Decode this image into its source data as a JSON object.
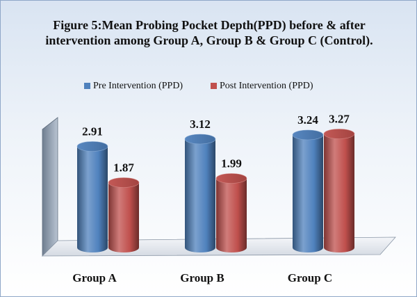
{
  "chart_data": {
    "type": "bar3d",
    "title": "Figure 5:Mean Probing Pocket Depth(PPD)  before & after intervention among Group A, Group B & Group C (Control).",
    "categories": [
      "Group A",
      "Group B",
      "Group C"
    ],
    "series": [
      {
        "name": "Pre Intervention (PPD)",
        "color": "#4f81bd",
        "values": [
          2.91,
          3.12,
          3.24
        ]
      },
      {
        "name": "Post Intervention (PPD)",
        "color": "#c0504d",
        "values": [
          1.87,
          1.99,
          3.27
        ]
      }
    ],
    "legend": "top"
  }
}
